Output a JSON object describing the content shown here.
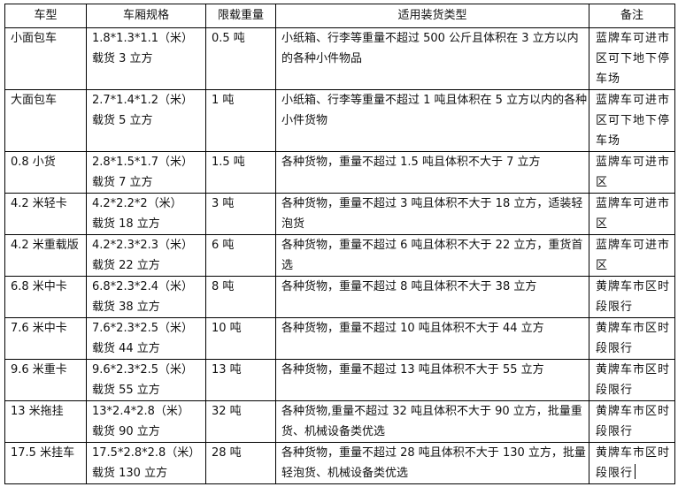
{
  "headers": [
    "车型",
    "车厢规格",
    "限载重量",
    "适用装货类型",
    "备注"
  ],
  "rows": [
    {
      "type": "小面包车",
      "size": "1.8*1.3*1.1（米）",
      "volume": "载货 3 立方",
      "load": "0.5 吨",
      "cargo": "小纸箱、行李等重量不超过 500 公斤且体积在 3 立方以内的各种小件物品",
      "note": "蓝牌车可进市区可下地下停车场"
    },
    {
      "type": "大面包车",
      "size": "2.7*1.4*1.2（米）",
      "volume": "载货 5 立方",
      "load": "1 吨",
      "cargo": "小纸箱、行李等重量不超过 1 吨且体积在 5 立方以内的各种小件货物",
      "note": "蓝牌车可进市区可下地下停车场"
    },
    {
      "type": "0.8 小货",
      "size": "2.8*1.5*1.7（米）",
      "volume": "载货 7 立方",
      "load": "1.5 吨",
      "cargo": "各种货物，重量不超过 1.5 吨且体积不大于 7 立方",
      "note": "蓝牌车可进市区"
    },
    {
      "type": "4.2 米轻卡",
      "size": "4.2*2.2*2（米）",
      "volume": "载货 18 立方",
      "load": "3 吨",
      "cargo": "各种货物，重量不超过 3 吨且体积不大于 18 立方，适装轻泡货",
      "note": "蓝牌车可进市区"
    },
    {
      "type": "4.2 米重载版",
      "size": "4.2*2.3*2.3（米）",
      "volume": "载货 22 立方",
      "load": "6 吨",
      "cargo": "各种货物，重量不超过 6 吨且体积不大于 22 立方，重货首选",
      "note": "蓝牌车可进市区"
    },
    {
      "type": "6.8 米中卡",
      "size": "6.8*2.3*2.4（米）",
      "volume": "载货 38 立方",
      "load": "8 吨",
      "cargo": "各种货物，重量不超过 8 吨且体积不大于 38 立方",
      "note": "黄牌车市区时段限行"
    },
    {
      "type": "7.6 米中卡",
      "size": "7.6*2.3*2.5（米）",
      "volume": "载货 44 立方",
      "load": "10 吨",
      "cargo": "各种货物，重量不超过 10 吨且体积不大于 44 立方",
      "note": "黄牌车市区时段限行"
    },
    {
      "type": "9.6 米重卡",
      "size": "9.6*2.3*2.5（米）",
      "volume": "载货 55 立方",
      "load": "13 吨",
      "cargo": "各种货物，重量不超过 13 吨且体积不大于 55 立方",
      "note": "黄牌车市区时段限行"
    },
    {
      "type": "13 米拖挂",
      "size": "13*2.4*2.8（米）",
      "volume": "载货 90 立方",
      "load": "32 吨",
      "cargo": "各种货物,重量不超过 32 吨且体积不大于 90 立方，批量重货、机械设备类优选",
      "note": "黄牌车市区时段限行"
    },
    {
      "type": "17.5 米挂车",
      "size": "17.5*2.8*2.8（米）",
      "volume": "载货 130 立方",
      "load": "28 吨",
      "cargo": "各种货物，重量不超过 28 吨且体积不大于 130 立方，批量轻泡货、机械设备类优选",
      "note": "黄牌车市区时段限行"
    }
  ]
}
